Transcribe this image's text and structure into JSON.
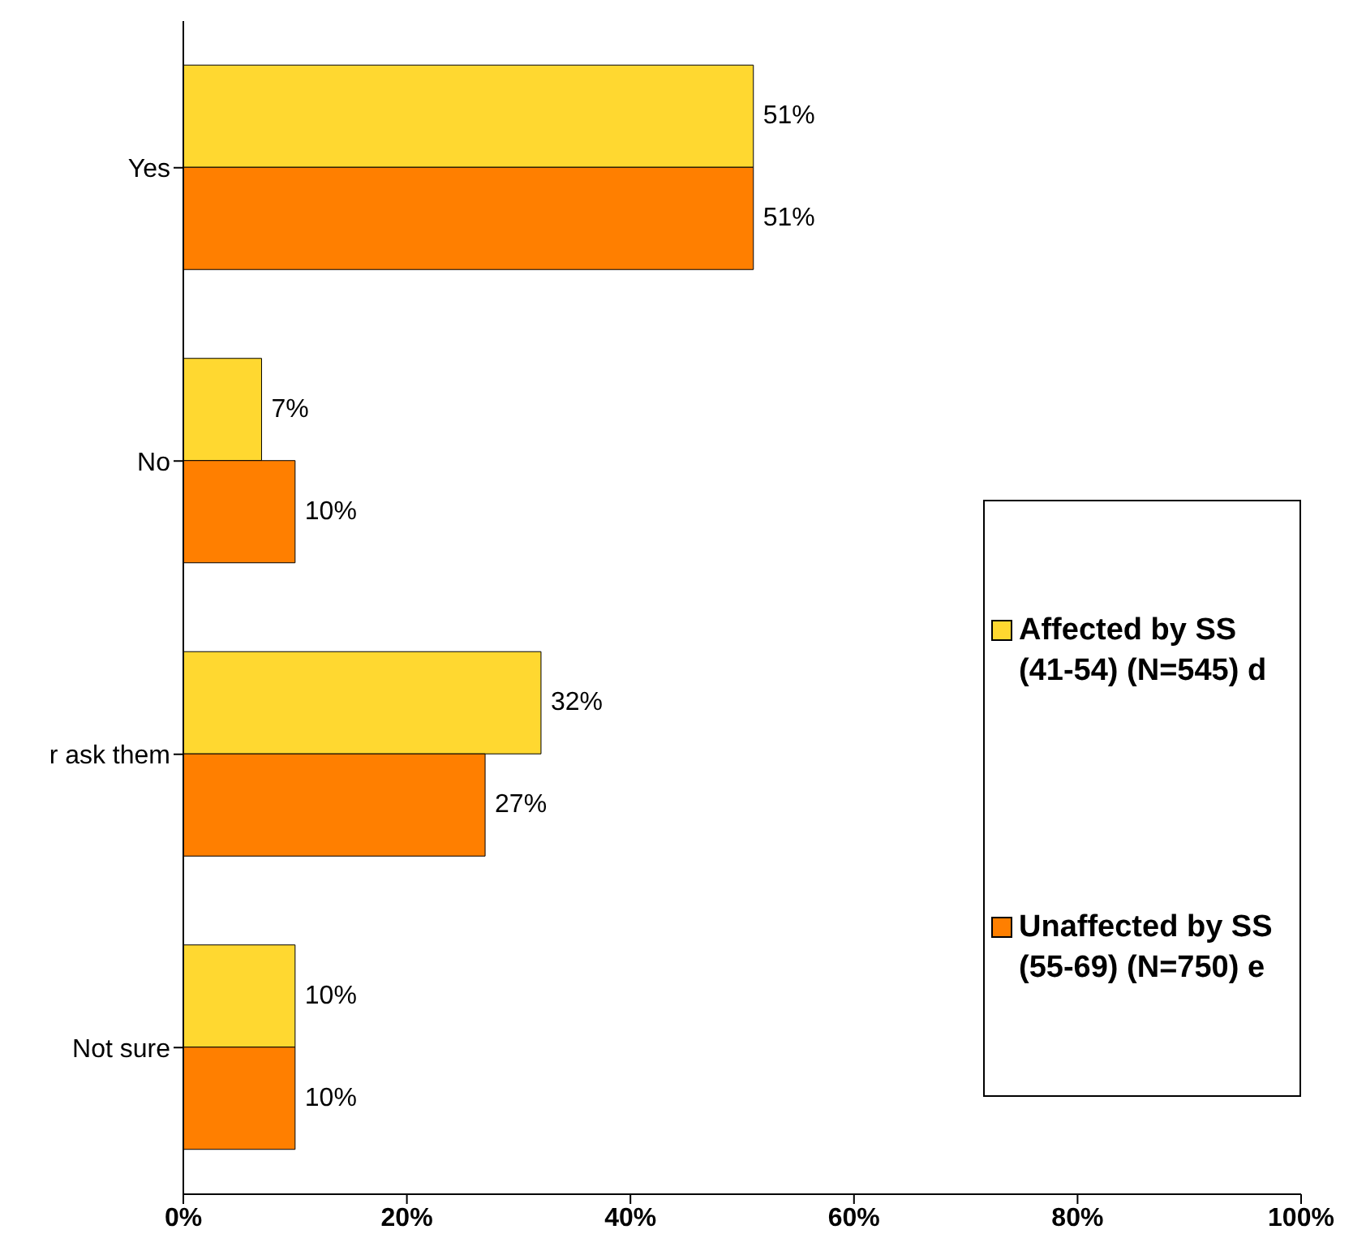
{
  "chart_data": {
    "type": "bar",
    "orientation": "horizontal",
    "categories": [
      "Yes",
      "No",
      "r ask them",
      "Not sure"
    ],
    "series": [
      {
        "name": "Affected by SS (41-54) (N=545) d",
        "color": "#ffd830",
        "values": [
          51,
          7,
          32,
          10
        ],
        "value_labels": [
          "51%",
          "7%",
          "32%",
          "10%"
        ]
      },
      {
        "name": "Unaffected by SS (55-69) (N=750) e",
        "color": "#ff7f00",
        "values": [
          51,
          10,
          27,
          10
        ],
        "value_labels": [
          "51%",
          "10%",
          "27%",
          "10%"
        ]
      }
    ],
    "xlim": [
      0,
      100
    ],
    "xticks": [
      {
        "value": 0,
        "label": "0%"
      },
      {
        "value": 20,
        "label": "20%"
      },
      {
        "value": 40,
        "label": "40%"
      },
      {
        "value": 60,
        "label": "60%"
      },
      {
        "value": 80,
        "label": "80%"
      },
      {
        "value": 100,
        "label": "100%"
      }
    ],
    "grid": false,
    "legend": "right"
  }
}
